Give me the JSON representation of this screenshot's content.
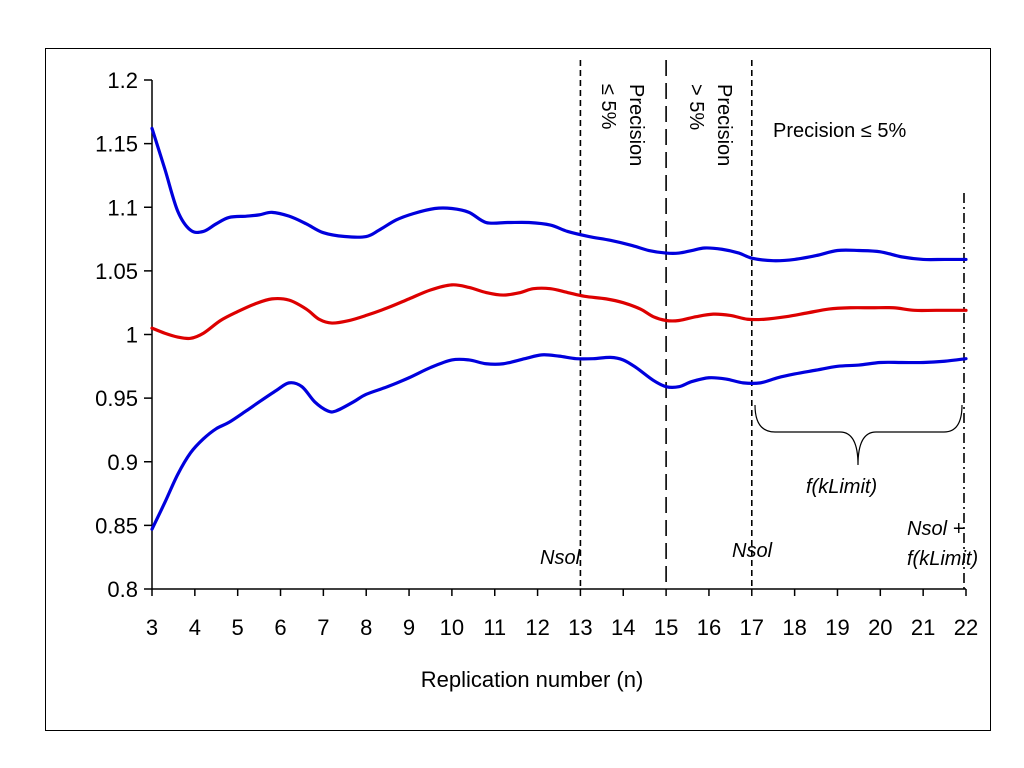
{
  "chart_data": {
    "type": "line",
    "title": "",
    "xlabel": "Replication number (n)",
    "ylabel": "",
    "x_ticks": [
      3,
      4,
      5,
      6,
      7,
      8,
      9,
      10,
      11,
      12,
      13,
      14,
      15,
      16,
      17,
      18,
      19,
      20,
      21,
      22
    ],
    "y_ticks": [
      0.8,
      0.85,
      0.9,
      0.95,
      1,
      1.05,
      1.1,
      1.15,
      1.2
    ],
    "y_tick_labels": [
      "0.8",
      "0.85",
      "0.9",
      "0.95",
      "1",
      "1.05",
      "1.1",
      "1.15",
      "1.2"
    ],
    "xlim": [
      3,
      22
    ],
    "ylim": [
      0.8,
      1.2
    ],
    "grid": false,
    "legend": "none",
    "series": [
      {
        "color": "#0000dd",
        "points": [
          [
            3,
            1.162
          ],
          [
            3.3,
            1.13
          ],
          [
            3.6,
            1.097
          ],
          [
            3.9,
            1.082
          ],
          [
            4.2,
            1.081
          ],
          [
            4.5,
            1.087
          ],
          [
            4.8,
            1.092
          ],
          [
            5.2,
            1.093
          ],
          [
            5.5,
            1.094
          ],
          [
            5.8,
            1.096
          ],
          [
            6.2,
            1.093
          ],
          [
            6.6,
            1.087
          ],
          [
            7,
            1.08
          ],
          [
            7.5,
            1.077
          ],
          [
            8,
            1.077
          ],
          [
            8.3,
            1.082
          ],
          [
            8.7,
            1.09
          ],
          [
            9.1,
            1.095
          ],
          [
            9.6,
            1.099
          ],
          [
            10,
            1.099
          ],
          [
            10.4,
            1.096
          ],
          [
            10.8,
            1.088
          ],
          [
            11.3,
            1.088
          ],
          [
            11.8,
            1.088
          ],
          [
            12.3,
            1.086
          ],
          [
            12.7,
            1.081
          ],
          [
            13.2,
            1.077
          ],
          [
            13.7,
            1.074
          ],
          [
            14.2,
            1.07
          ],
          [
            14.6,
            1.066
          ],
          [
            15,
            1.064
          ],
          [
            15.3,
            1.064
          ],
          [
            15.6,
            1.066
          ],
          [
            15.9,
            1.068
          ],
          [
            16.3,
            1.067
          ],
          [
            16.7,
            1.064
          ],
          [
            17,
            1.06
          ],
          [
            17.5,
            1.058
          ],
          [
            18,
            1.059
          ],
          [
            18.5,
            1.062
          ],
          [
            19,
            1.066
          ],
          [
            19.5,
            1.066
          ],
          [
            20,
            1.065
          ],
          [
            20.5,
            1.061
          ],
          [
            21,
            1.059
          ],
          [
            21.5,
            1.059
          ],
          [
            22,
            1.059
          ]
        ]
      },
      {
        "color": "#dd0000",
        "points": [
          [
            3,
            1.005
          ],
          [
            3.3,
            1.001
          ],
          [
            3.6,
            0.998
          ],
          [
            3.9,
            0.997
          ],
          [
            4.2,
            1.001
          ],
          [
            4.6,
            1.011
          ],
          [
            5,
            1.018
          ],
          [
            5.4,
            1.024
          ],
          [
            5.8,
            1.028
          ],
          [
            6.2,
            1.027
          ],
          [
            6.6,
            1.02
          ],
          [
            6.9,
            1.012
          ],
          [
            7.2,
            1.009
          ],
          [
            7.6,
            1.011
          ],
          [
            8,
            1.015
          ],
          [
            8.5,
            1.021
          ],
          [
            9,
            1.028
          ],
          [
            9.5,
            1.035
          ],
          [
            10,
            1.039
          ],
          [
            10.4,
            1.037
          ],
          [
            10.8,
            1.033
          ],
          [
            11.2,
            1.031
          ],
          [
            11.6,
            1.033
          ],
          [
            11.9,
            1.036
          ],
          [
            12.3,
            1.036
          ],
          [
            12.7,
            1.033
          ],
          [
            13.1,
            1.03
          ],
          [
            13.6,
            1.028
          ],
          [
            14,
            1.025
          ],
          [
            14.4,
            1.02
          ],
          [
            14.7,
            1.014
          ],
          [
            15,
            1.011
          ],
          [
            15.3,
            1.011
          ],
          [
            15.7,
            1.014
          ],
          [
            16.1,
            1.016
          ],
          [
            16.5,
            1.015
          ],
          [
            16.9,
            1.012
          ],
          [
            17.3,
            1.012
          ],
          [
            17.8,
            1.014
          ],
          [
            18.3,
            1.017
          ],
          [
            18.8,
            1.02
          ],
          [
            19.3,
            1.021
          ],
          [
            19.8,
            1.021
          ],
          [
            20.3,
            1.021
          ],
          [
            20.8,
            1.019
          ],
          [
            21.3,
            1.019
          ],
          [
            22,
            1.019
          ]
        ]
      },
      {
        "color": "#0000dd",
        "points": [
          [
            3,
            0.847
          ],
          [
            3.3,
            0.868
          ],
          [
            3.6,
            0.89
          ],
          [
            3.9,
            0.907
          ],
          [
            4.2,
            0.918
          ],
          [
            4.5,
            0.926
          ],
          [
            4.8,
            0.931
          ],
          [
            5.2,
            0.94
          ],
          [
            5.5,
            0.947
          ],
          [
            5.9,
            0.956
          ],
          [
            6.2,
            0.962
          ],
          [
            6.5,
            0.959
          ],
          [
            6.8,
            0.947
          ],
          [
            7.1,
            0.94
          ],
          [
            7.3,
            0.94
          ],
          [
            7.7,
            0.947
          ],
          [
            8,
            0.953
          ],
          [
            8.5,
            0.959
          ],
          [
            9,
            0.966
          ],
          [
            9.5,
            0.974
          ],
          [
            10,
            0.98
          ],
          [
            10.4,
            0.98
          ],
          [
            10.8,
            0.977
          ],
          [
            11.2,
            0.977
          ],
          [
            11.7,
            0.981
          ],
          [
            12.1,
            0.984
          ],
          [
            12.5,
            0.983
          ],
          [
            12.9,
            0.981
          ],
          [
            13.3,
            0.981
          ],
          [
            13.7,
            0.982
          ],
          [
            14,
            0.98
          ],
          [
            14.3,
            0.974
          ],
          [
            14.7,
            0.964
          ],
          [
            15,
            0.959
          ],
          [
            15.3,
            0.959
          ],
          [
            15.6,
            0.963
          ],
          [
            16,
            0.966
          ],
          [
            16.4,
            0.965
          ],
          [
            16.8,
            0.962
          ],
          [
            17.2,
            0.962
          ],
          [
            17.6,
            0.966
          ],
          [
            18,
            0.969
          ],
          [
            18.5,
            0.972
          ],
          [
            19,
            0.975
          ],
          [
            19.5,
            0.976
          ],
          [
            20,
            0.978
          ],
          [
            20.5,
            0.978
          ],
          [
            21,
            0.978
          ],
          [
            21.5,
            0.979
          ],
          [
            22,
            0.981
          ]
        ]
      }
    ],
    "vlines": [
      {
        "x": 13,
        "style": "short-dash"
      },
      {
        "x": 15,
        "style": "long-dash"
      },
      {
        "x": 17,
        "style": "short-dash"
      },
      {
        "x": 22,
        "style": "dash-dot"
      }
    ],
    "annotations": {
      "precision_le_5_vertical_1": "Precision",
      "precision_le_5_vertical_2": "≤ 5%",
      "precision_gt_5_vertical_1": "Precision",
      "precision_gt_5_vertical_2": "> 5%",
      "precision_le_5_horizontal": "Precision ≤ 5%",
      "nsol_1": "Nsol",
      "nsol_2": "Nsol",
      "f_klimit": "f(kLimit)",
      "nsol_plus_1": "Nsol +",
      "nsol_plus_2": "f(kLimit)"
    }
  }
}
